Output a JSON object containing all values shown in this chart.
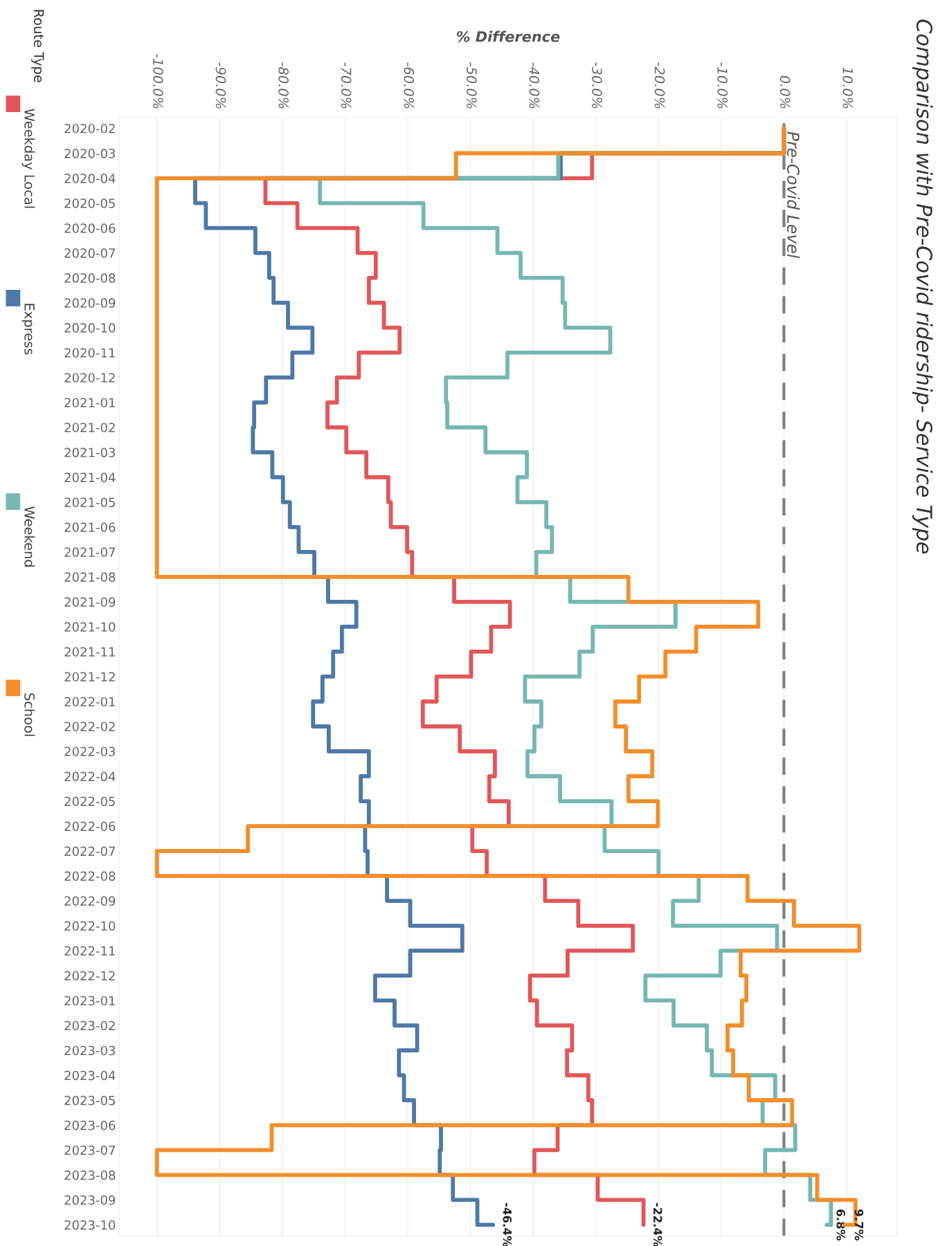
{
  "chart_data": {
    "type": "step",
    "orientation": "horizontal",
    "title": "Comparison with Pre-Covid ridership- Service Type",
    "xlabel": "% Difference",
    "legend_title": "Route Type",
    "legend": "left",
    "grid": "x",
    "categories": [
      "2020-02",
      "2020-03",
      "2020-04",
      "2020-05",
      "2020-06",
      "2020-07",
      "2020-08",
      "2020-09",
      "2020-10",
      "2020-11",
      "2020-12",
      "2021-01",
      "2021-02",
      "2021-03",
      "2021-04",
      "2021-05",
      "2021-06",
      "2021-07",
      "2021-08",
      "2021-09",
      "2021-10",
      "2021-11",
      "2021-12",
      "2022-01",
      "2022-02",
      "2022-03",
      "2022-04",
      "2022-05",
      "2022-06",
      "2022-07",
      "2022-08",
      "2022-09",
      "2022-10",
      "2022-11",
      "2022-12",
      "2023-01",
      "2023-02",
      "2023-03",
      "2023-04",
      "2023-05",
      "2023-06",
      "2023-07",
      "2023-08",
      "2023-09",
      "2023-10"
    ],
    "xlim": [
      -106,
      18
    ],
    "xticks": [
      {
        "value": -100,
        "label": "-100.0%"
      },
      {
        "value": -90,
        "label": "-90.0%"
      },
      {
        "value": -80,
        "label": "-80.0%"
      },
      {
        "value": -70,
        "label": "-70.0%"
      },
      {
        "value": -60,
        "label": "-60.0%"
      },
      {
        "value": -50,
        "label": "-50.0%"
      },
      {
        "value": -40,
        "label": "-40.0%"
      },
      {
        "value": -30,
        "label": "-30.0%"
      },
      {
        "value": -20,
        "label": "-20.0%"
      },
      {
        "value": -10,
        "label": "-10.0%"
      },
      {
        "value": 0,
        "label": "0.0%"
      },
      {
        "value": 10,
        "label": "10.0%"
      }
    ],
    "ref_lines": [
      {
        "axis": "x",
        "value": 0,
        "label": "Pre-Covid Level",
        "color": "#7f7f7f",
        "line_style": "dashed"
      }
    ],
    "series": [
      {
        "name": "Weekday Local",
        "color": "#e15759",
        "values": [
          0,
          -30.6,
          -82.7,
          -77.6,
          -68.0,
          -65.1,
          -66.2,
          -63.8,
          -61.3,
          -67.8,
          -71.3,
          -72.8,
          -69.8,
          -66.6,
          -63.1,
          -62.7,
          -60.1,
          -59.3,
          -52.6,
          -43.7,
          -46.7,
          -49.9,
          -55.4,
          -57.6,
          -51.7,
          -46.1,
          -47.0,
          -43.9,
          -49.7,
          -47.4,
          -38.1,
          -32.8,
          -24.1,
          -34.5,
          -40.5,
          -39.4,
          -33.8,
          -34.6,
          -31.2,
          -30.6,
          -36.1,
          -39.8,
          -29.7,
          -22.4,
          -22.4
        ],
        "value_labels": [
          null,
          null,
          null,
          null,
          null,
          null,
          null,
          null,
          null,
          null,
          null,
          null,
          null,
          null,
          null,
          null,
          null,
          null,
          null,
          null,
          null,
          null,
          null,
          null,
          null,
          null,
          null,
          null,
          null,
          null,
          null,
          null,
          null,
          null,
          null,
          null,
          null,
          null,
          null,
          null,
          null,
          null,
          null,
          null,
          "-22.4%"
        ]
      },
      {
        "name": "Express",
        "color": "#4e79a7",
        "values": [
          0,
          -35.6,
          -93.9,
          -92.2,
          -84.3,
          -82.1,
          -81.4,
          -79.1,
          -75.2,
          -78.4,
          -82.6,
          -84.5,
          -84.7,
          -81.6,
          -79.9,
          -78.8,
          -77.4,
          -74.9,
          -72.7,
          -68.2,
          -70.5,
          -71.9,
          -73.6,
          -75.1,
          -72.6,
          -66.2,
          -67.5,
          -66.2,
          -66.8,
          -66.4,
          -63.3,
          -59.6,
          -51.3,
          -59.6,
          -65.2,
          -62.1,
          -58.5,
          -61.4,
          -60.6,
          -59.0,
          -54.7,
          -54.9,
          -52.8,
          -48.9,
          -46.4
        ],
        "value_labels": [
          null,
          null,
          null,
          null,
          null,
          null,
          null,
          null,
          null,
          null,
          null,
          null,
          null,
          null,
          null,
          null,
          null,
          null,
          null,
          null,
          null,
          null,
          null,
          null,
          null,
          null,
          null,
          null,
          null,
          null,
          null,
          null,
          null,
          null,
          null,
          null,
          null,
          null,
          null,
          null,
          null,
          null,
          null,
          null,
          "-46.4%"
        ]
      },
      {
        "name": "Weekend",
        "color": "#76b7b2",
        "values": [
          0,
          -36.0,
          -74.0,
          -57.5,
          -45.7,
          -42.0,
          -35.3,
          -34.9,
          -27.7,
          -44.1,
          -53.9,
          -53.7,
          -47.6,
          -41.0,
          -42.5,
          -37.9,
          -37.0,
          -39.5,
          -34.1,
          -17.3,
          -30.5,
          -32.6,
          -41.3,
          -38.7,
          -39.8,
          -40.9,
          -35.7,
          -27.5,
          -28.6,
          -20.0,
          -13.6,
          -17.7,
          -1.1,
          -10.1,
          -22.1,
          -17.6,
          -12.3,
          -11.5,
          -1.4,
          -3.4,
          1.8,
          -3.0,
          4.2,
          7.5,
          6.8
        ],
        "value_labels": [
          null,
          null,
          null,
          null,
          null,
          null,
          null,
          null,
          null,
          null,
          null,
          null,
          null,
          null,
          null,
          null,
          null,
          null,
          null,
          null,
          null,
          null,
          null,
          null,
          null,
          null,
          null,
          null,
          null,
          null,
          null,
          null,
          null,
          null,
          null,
          null,
          null,
          null,
          null,
          null,
          null,
          null,
          null,
          null,
          "6.8%"
        ]
      },
      {
        "name": "School",
        "color": "#f28e2b",
        "values": [
          0,
          -52.3,
          -100,
          -100,
          -100,
          -100,
          -100,
          -100,
          -100,
          -100,
          -100,
          -100,
          -100,
          -100,
          -100,
          -100,
          -100,
          -100,
          -24.8,
          -4.1,
          -14.0,
          -18.9,
          -23.1,
          -26.9,
          -25.2,
          -21.0,
          -24.8,
          -20.1,
          -85.5,
          -100,
          -5.8,
          1.6,
          12.0,
          -6.9,
          -6.0,
          -6.7,
          -9.0,
          -8.1,
          -5.6,
          1.3,
          -81.7,
          -100,
          5.3,
          11.4,
          9.7
        ],
        "value_labels": [
          null,
          null,
          null,
          null,
          null,
          null,
          null,
          null,
          null,
          null,
          null,
          null,
          null,
          null,
          null,
          null,
          null,
          null,
          null,
          null,
          null,
          null,
          null,
          null,
          null,
          null,
          null,
          null,
          null,
          null,
          null,
          null,
          null,
          null,
          null,
          null,
          null,
          null,
          null,
          null,
          null,
          null,
          null,
          null,
          "9.7%"
        ]
      }
    ]
  }
}
